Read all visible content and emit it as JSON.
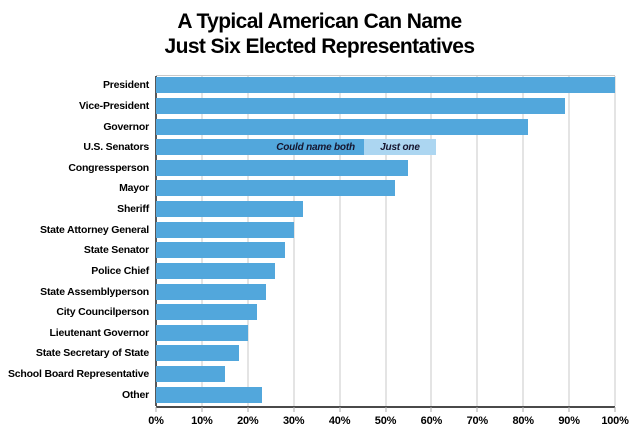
{
  "title": {
    "line1": "A Typical American Can Name",
    "line2": "Just Six Elected Representatives"
  },
  "colors": {
    "bar": "#52a7dc",
    "bar_light": "#acd6f1",
    "gridline": "#c9c9c9",
    "zero_line": "#57585a",
    "axis": "#4a4a4a",
    "annotation_text": "#15152e"
  },
  "chart_data": {
    "type": "bar",
    "orientation": "horizontal",
    "title": "A Typical American Can Name Just Six Elected Representatives",
    "xlabel": "",
    "ylabel": "",
    "xlim": [
      0,
      100
    ],
    "grid": true,
    "x_ticks": [
      "0%",
      "10%",
      "20%",
      "30%",
      "40%",
      "50%",
      "60%",
      "70%",
      "80%",
      "90%",
      "100%"
    ],
    "x_tick_values": [
      0,
      10,
      20,
      30,
      40,
      50,
      60,
      70,
      80,
      90,
      100
    ],
    "categories": [
      "President",
      "Vice-President",
      "Governor",
      "U.S. Senators",
      "Congressperson",
      "Mayor",
      "Sheriff",
      "State Attorney General",
      "State Senator",
      "Police Chief",
      "State Assemblyperson",
      "City Councilperson",
      "Lieutenant Governor",
      "State Secretary of State",
      "School Board Representative",
      "Other"
    ],
    "values": [
      100,
      89,
      81,
      61,
      55,
      52,
      32,
      30,
      28,
      26,
      24,
      22,
      20,
      18,
      15,
      23
    ],
    "us_senators_breakdown": {
      "split_category": "U.S. Senators",
      "could_name_both": 48,
      "just_one": 13,
      "label_both": "Could name both",
      "label_one": "Just one"
    }
  }
}
